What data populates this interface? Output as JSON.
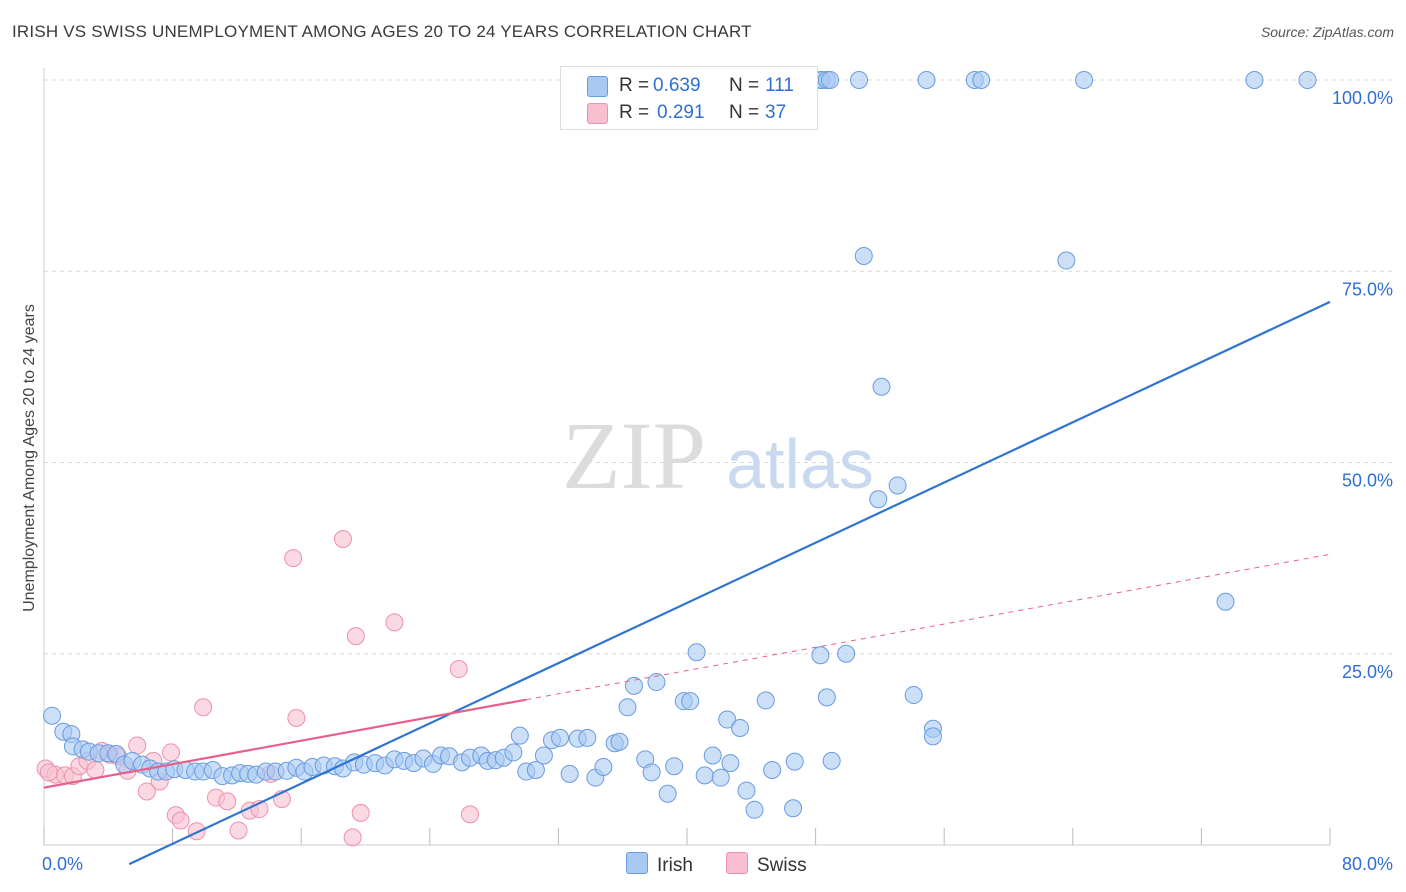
{
  "title": "IRISH VS SWISS UNEMPLOYMENT AMONG AGES 20 TO 24 YEARS CORRELATION CHART",
  "source": "Source: ZipAtlas.com",
  "watermark": {
    "zip": "ZIP",
    "atlas": "atlas"
  },
  "legend_top": {
    "rows": [
      {
        "r_label": "R =",
        "r_value": "0.639",
        "n_label": "N =",
        "n_value": "111"
      },
      {
        "r_label": "R =",
        "r_value": "0.291",
        "n_label": "N =",
        "n_value": "37"
      }
    ]
  },
  "legend_bottom": {
    "items": [
      "Irish",
      "Swiss"
    ]
  },
  "colors": {
    "irish_fill": "#a9c9f2",
    "irish_stroke": "#6a9be0",
    "irish_line": "#2f74d0",
    "swiss_fill": "#f8bfd0",
    "swiss_stroke": "#ee90ad",
    "swiss_line": "#e8608a",
    "axis_text": "#2f6fd1",
    "grid": "#d8d8d8"
  },
  "chart_data": {
    "type": "scatter",
    "title": "IRISH VS SWISS UNEMPLOYMENT AMONG AGES 20 TO 24 YEARS CORRELATION CHART",
    "xlabel": "",
    "ylabel": "Unemployment Among Ages 20 to 24 years",
    "xlim": [
      0,
      80
    ],
    "ylim": [
      0,
      100
    ],
    "x_tick_labels": [
      "0.0%",
      "80.0%"
    ],
    "y_tick_labels": [
      "100.0%",
      "75.0%",
      "50.0%",
      "25.0%"
    ],
    "y_ticks": [
      100,
      75,
      50,
      25
    ],
    "grid": true,
    "legend_position": "top-center",
    "series": [
      {
        "name": "Irish",
        "R": 0.639,
        "N": 111,
        "trend": {
          "x": [
            5.3,
            80.0
          ],
          "y": [
            -2.5,
            71.0
          ],
          "dashed_extension": false
        },
        "points": [
          [
            0.5,
            16.9
          ],
          [
            1.2,
            14.8
          ],
          [
            1.7,
            14.5
          ],
          [
            1.8,
            12.9
          ],
          [
            2.4,
            12.5
          ],
          [
            2.8,
            12.2
          ],
          [
            3.4,
            12.0
          ],
          [
            4.0,
            12.0
          ],
          [
            4.5,
            11.9
          ],
          [
            5.0,
            10.5
          ],
          [
            5.5,
            11.0
          ],
          [
            6.1,
            10.5
          ],
          [
            6.6,
            10.0
          ],
          [
            7.1,
            9.6
          ],
          [
            7.6,
            9.6
          ],
          [
            8.1,
            9.9
          ],
          [
            8.8,
            9.8
          ],
          [
            9.4,
            9.6
          ],
          [
            9.9,
            9.6
          ],
          [
            10.5,
            9.8
          ],
          [
            11.1,
            9.0
          ],
          [
            11.7,
            9.1
          ],
          [
            12.2,
            9.4
          ],
          [
            12.7,
            9.3
          ],
          [
            13.2,
            9.2
          ],
          [
            13.8,
            9.6
          ],
          [
            14.4,
            9.6
          ],
          [
            15.1,
            9.7
          ],
          [
            15.7,
            10.1
          ],
          [
            16.2,
            9.6
          ],
          [
            16.7,
            10.2
          ],
          [
            17.4,
            10.4
          ],
          [
            18.1,
            10.3
          ],
          [
            18.6,
            10.0
          ],
          [
            19.3,
            10.8
          ],
          [
            19.9,
            10.5
          ],
          [
            20.6,
            10.7
          ],
          [
            21.2,
            10.4
          ],
          [
            21.8,
            11.2
          ],
          [
            22.4,
            11.0
          ],
          [
            23.0,
            10.7
          ],
          [
            23.6,
            11.3
          ],
          [
            24.2,
            10.6
          ],
          [
            24.7,
            11.7
          ],
          [
            25.2,
            11.6
          ],
          [
            26.0,
            10.8
          ],
          [
            26.5,
            11.4
          ],
          [
            27.2,
            11.7
          ],
          [
            27.6,
            11.0
          ],
          [
            28.1,
            11.1
          ],
          [
            28.6,
            11.4
          ],
          [
            29.2,
            12.1
          ],
          [
            29.6,
            14.3
          ],
          [
            30.0,
            9.6
          ],
          [
            30.6,
            9.8
          ],
          [
            31.1,
            11.7
          ],
          [
            31.6,
            13.7
          ],
          [
            32.1,
            14.0
          ],
          [
            32.7,
            9.3
          ],
          [
            33.2,
            13.9
          ],
          [
            33.8,
            14.0
          ],
          [
            34.3,
            8.8
          ],
          [
            34.8,
            10.2
          ],
          [
            35.5,
            13.3
          ],
          [
            35.8,
            13.5
          ],
          [
            36.3,
            18.0
          ],
          [
            36.7,
            20.8
          ],
          [
            37.4,
            11.2
          ],
          [
            37.8,
            9.5
          ],
          [
            38.1,
            21.3
          ],
          [
            38.8,
            6.7
          ],
          [
            39.2,
            10.3
          ],
          [
            39.8,
            18.8
          ],
          [
            40.2,
            18.8
          ],
          [
            40.6,
            25.2
          ],
          [
            41.1,
            9.1
          ],
          [
            41.6,
            11.7
          ],
          [
            42.1,
            8.8
          ],
          [
            42.5,
            16.4
          ],
          [
            42.7,
            10.7
          ],
          [
            43.3,
            15.3
          ],
          [
            43.7,
            7.1
          ],
          [
            44.2,
            4.6
          ],
          [
            44.9,
            18.9
          ],
          [
            45.3,
            9.8
          ],
          [
            46.6,
            4.8
          ],
          [
            46.7,
            10.9
          ],
          [
            48.3,
            24.8
          ],
          [
            48.7,
            19.3
          ],
          [
            49.0,
            11.0
          ],
          [
            49.9,
            25.0
          ],
          [
            51.0,
            77.0
          ],
          [
            51.9,
            45.2
          ],
          [
            52.1,
            59.9
          ],
          [
            53.1,
            47.0
          ],
          [
            54.1,
            19.6
          ],
          [
            55.3,
            15.2
          ],
          [
            55.3,
            14.2
          ],
          [
            48.3,
            100
          ],
          [
            48.4,
            100
          ],
          [
            48.7,
            100
          ],
          [
            48.9,
            100
          ],
          [
            50.7,
            100
          ],
          [
            54.9,
            100
          ],
          [
            57.9,
            100
          ],
          [
            58.3,
            100
          ],
          [
            63.6,
            76.4
          ],
          [
            64.7,
            100
          ],
          [
            73.5,
            31.8
          ],
          [
            75.3,
            100
          ],
          [
            78.6,
            100
          ]
        ]
      },
      {
        "name": "Swiss",
        "R": 0.291,
        "N": 37,
        "trend": {
          "x": [
            0.0,
            30.0,
            80.0
          ],
          "y": [
            7.5,
            19.0,
            38.0
          ],
          "dashed_from_x": 30.0
        },
        "points": [
          [
            0.1,
            10.0
          ],
          [
            0.7,
            9.2
          ],
          [
            1.3,
            9.1
          ],
          [
            1.8,
            9.0
          ],
          [
            2.2,
            10.3
          ],
          [
            2.7,
            11.0
          ],
          [
            3.2,
            9.8
          ],
          [
            3.6,
            12.3
          ],
          [
            4.1,
            11.8
          ],
          [
            4.6,
            11.6
          ],
          [
            5.2,
            9.7
          ],
          [
            5.8,
            13.0
          ],
          [
            6.4,
            7.0
          ],
          [
            6.8,
            11.0
          ],
          [
            7.2,
            8.3
          ],
          [
            7.9,
            12.1
          ],
          [
            8.2,
            3.9
          ],
          [
            8.5,
            3.2
          ],
          [
            9.5,
            1.8
          ],
          [
            9.9,
            18.0
          ],
          [
            10.7,
            6.2
          ],
          [
            11.4,
            5.7
          ],
          [
            12.1,
            1.9
          ],
          [
            12.8,
            4.5
          ],
          [
            13.4,
            4.7
          ],
          [
            14.1,
            9.3
          ],
          [
            14.8,
            6.0
          ],
          [
            15.5,
            37.5
          ],
          [
            15.7,
            16.6
          ],
          [
            18.6,
            40.0
          ],
          [
            19.2,
            1.0
          ],
          [
            19.4,
            27.3
          ],
          [
            19.7,
            4.2
          ],
          [
            21.8,
            29.1
          ],
          [
            25.8,
            23.0
          ],
          [
            26.5,
            4.0
          ],
          [
            0.3,
            9.5
          ]
        ]
      }
    ]
  }
}
